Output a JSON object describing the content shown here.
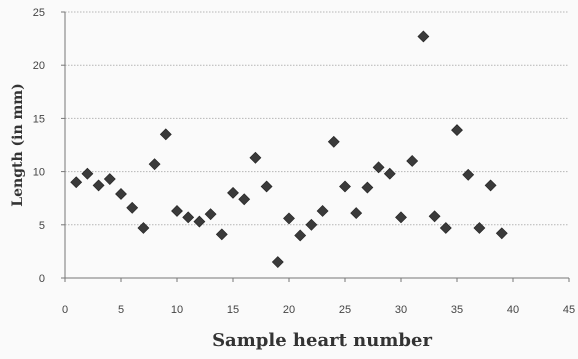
{
  "chart_data": {
    "type": "scatter",
    "title": "",
    "xlabel": "Sample heart number",
    "ylabel": "Length (in mm)",
    "xlim": [
      0,
      45
    ],
    "ylim": [
      0,
      25
    ],
    "xticks": [
      0,
      5,
      10,
      15,
      20,
      25,
      30,
      35,
      40,
      45
    ],
    "yticks": [
      0,
      5,
      10,
      15,
      20,
      25
    ],
    "xtick_labels": [
      "0",
      "5",
      "10",
      "15",
      "20",
      "25",
      "30",
      "35",
      "40",
      "45"
    ],
    "ytick_labels": [
      "0",
      "5",
      "10",
      "15",
      "20",
      "25"
    ],
    "grid": "horizontal",
    "legend": "none",
    "marker": "diamond",
    "marker_color": "#3a3a3a",
    "series": [
      {
        "x": [
          1,
          2,
          3,
          4,
          5,
          6,
          7,
          8,
          9,
          10,
          11,
          12,
          13,
          14,
          15,
          16,
          17,
          18,
          19,
          20,
          21,
          22,
          23,
          24,
          25,
          26,
          27,
          28,
          29,
          30,
          31,
          32,
          33,
          34,
          35,
          36,
          37,
          38,
          39
        ],
        "y": [
          9.0,
          9.8,
          8.7,
          9.3,
          7.9,
          6.6,
          4.7,
          10.7,
          13.5,
          6.3,
          5.7,
          5.3,
          6.0,
          4.1,
          8.0,
          7.4,
          11.3,
          8.6,
          1.5,
          5.6,
          4.0,
          5.0,
          6.3,
          12.8,
          8.6,
          6.1,
          8.5,
          10.4,
          9.8,
          5.7,
          11.0,
          22.7,
          5.8,
          4.7,
          13.9,
          9.7,
          4.7,
          8.7,
          4.2
        ]
      }
    ]
  }
}
